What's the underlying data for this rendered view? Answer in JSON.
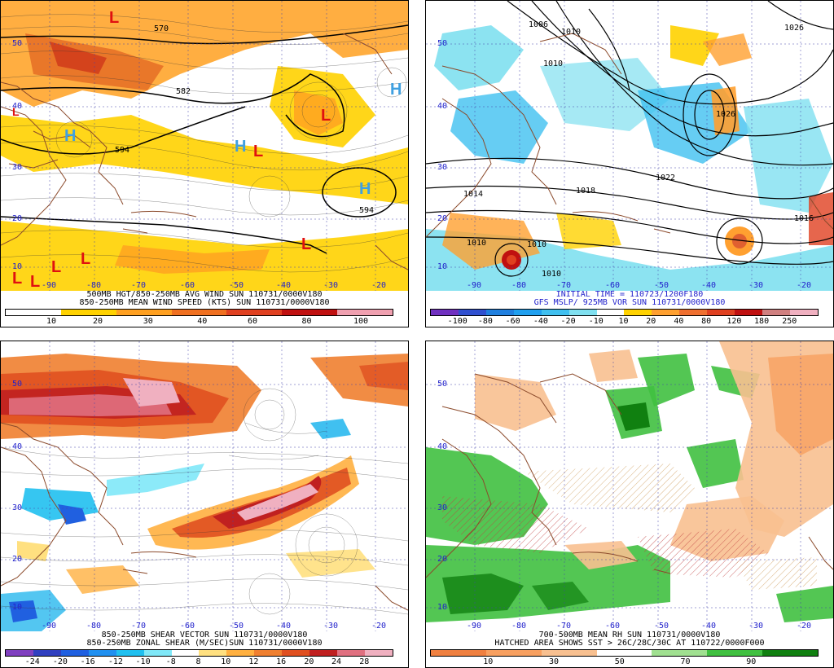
{
  "panels": [
    {
      "id": "p1",
      "caption_line1": "500MB HGT/850-250MB AVG WIND SUN 110731/0000V180",
      "caption_line2": "850-250MB MEAN WIND SPEED (KTS) SUN 110731/0000V180",
      "colorbar_colors": [
        "#ffffff",
        "#ffd200",
        "#ffa020",
        "#f07020",
        "#e04020",
        "#c01010",
        "#f0a0b0"
      ],
      "colorbar_labels": [
        "10",
        "20",
        "30",
        "40",
        "60",
        "80",
        "100"
      ],
      "lat_labels": [
        "50",
        "40",
        "30",
        "20",
        "10"
      ],
      "lon_labels": [
        "-90",
        "-80",
        "-70",
        "-60",
        "-50",
        "-40",
        "-30",
        "-20"
      ],
      "contour_labels": [
        "570",
        "582",
        "594",
        "594"
      ],
      "highs": [
        "H",
        "H",
        "H",
        "H"
      ],
      "lows": [
        "L",
        "L",
        "L",
        "L",
        "L",
        "L",
        "L",
        "L",
        "L"
      ]
    },
    {
      "id": "p2",
      "caption_line1": "INITIAL TIME = 110723/1200F180",
      "caption_line2": "GFS MSLP/ 925MB VOR SUN 110731/0000V180",
      "colorbar_colors": [
        "#7030c0",
        "#3050d0",
        "#2080e0",
        "#20a0f0",
        "#40c0f0",
        "#80e0f0",
        "#ffffff",
        "#ffd200",
        "#ffa030",
        "#f07030",
        "#e04020",
        "#c01010",
        "#d08080",
        "#f0b0c0"
      ],
      "colorbar_labels": [
        "-100",
        "-80",
        "-60",
        "-40",
        "-20",
        "-10",
        "10",
        "20",
        "40",
        "80",
        "120",
        "180",
        "250"
      ],
      "lat_labels": [
        "50",
        "40",
        "30",
        "20",
        "10"
      ],
      "lon_labels": [
        "-90",
        "-80",
        "-70",
        "-60",
        "-50",
        "-40",
        "-30",
        "-20"
      ],
      "contour_labels": [
        "1006",
        "1010",
        "1010",
        "1026",
        "1026",
        "1022",
        "1018",
        "1014",
        "1010",
        "1010",
        "1010",
        "1016"
      ]
    },
    {
      "id": "p3",
      "caption_line1": "850-250MB SHEAR VECTOR SUN 110731/0000V180",
      "caption_line2": "850-250MB ZONAL SHEAR (M/SEC)SUN 110731/0000V180",
      "colorbar_colors": [
        "#8040c0",
        "#3040c0",
        "#2060e0",
        "#2090f0",
        "#20c0f0",
        "#80e8f8",
        "#ffffff",
        "#ffe080",
        "#ffb040",
        "#f08030",
        "#e05020",
        "#c02020",
        "#e07080",
        "#f0b0c0"
      ],
      "colorbar_labels": [
        "-24",
        "-20",
        "-16",
        "-12",
        "-10",
        "-8",
        "8",
        "10",
        "12",
        "16",
        "20",
        "24",
        "28"
      ],
      "lat_labels": [
        "50",
        "40",
        "30",
        "20",
        "10"
      ],
      "lon_labels": [
        "-90",
        "-80",
        "-70",
        "-60",
        "-50",
        "-40",
        "-30",
        "-20"
      ]
    },
    {
      "id": "p4",
      "caption_line1": "700-500MB MEAN RH SUN 110731/0000V180",
      "caption_line2": "HATCHED AREA SHOWS SST > 26C/28C/30C AT 110722/0000F000",
      "colorbar_colors": [
        "#f08040",
        "#f8a060",
        "#f8c090",
        "#ffffff",
        "#a0e090",
        "#40c040",
        "#108010"
      ],
      "colorbar_labels": [
        "10",
        "30",
        "50",
        "70",
        "90"
      ],
      "lat_labels": [
        "50",
        "40",
        "30",
        "20",
        "10"
      ],
      "lon_labels": [
        "-90",
        "-80",
        "-70",
        "-60",
        "-50",
        "-40",
        "-30",
        "-20"
      ]
    }
  ]
}
